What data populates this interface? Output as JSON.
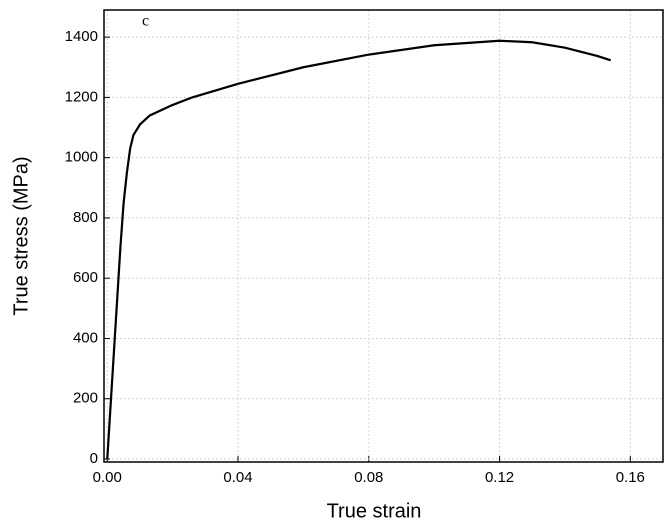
{
  "chart_data": {
    "type": "line",
    "annotation": "c",
    "x_label": "True strain",
    "y_label": "True stress (MPa)",
    "x": [
      0,
      0.002,
      0.004,
      0.005,
      0.006,
      0.007,
      0.008,
      0.01,
      0.013,
      0.02,
      0.026,
      0.04,
      0.06,
      0.08,
      0.1,
      0.12,
      0.13,
      0.14,
      0.15,
      0.154
    ],
    "y": [
      0,
      350,
      700,
      850,
      950,
      1030,
      1075,
      1110,
      1140,
      1175,
      1200,
      1245,
      1300,
      1342,
      1373,
      1388,
      1383,
      1365,
      1337,
      1323
    ],
    "color": "#000000",
    "xlim": [
      -0.001,
      0.17
    ],
    "ylim": [
      -10,
      1490
    ],
    "xticks": [
      {
        "value": 0,
        "label": "0.00"
      },
      {
        "value": 0.04,
        "label": "0.04"
      },
      {
        "value": 0.08,
        "label": "0.08"
      },
      {
        "value": 0.12,
        "label": "0.12"
      },
      {
        "value": 0.16,
        "label": "0.16"
      }
    ],
    "yticks": [
      0,
      200,
      400,
      600,
      800,
      1000,
      1200,
      1400
    ],
    "grid": true
  }
}
